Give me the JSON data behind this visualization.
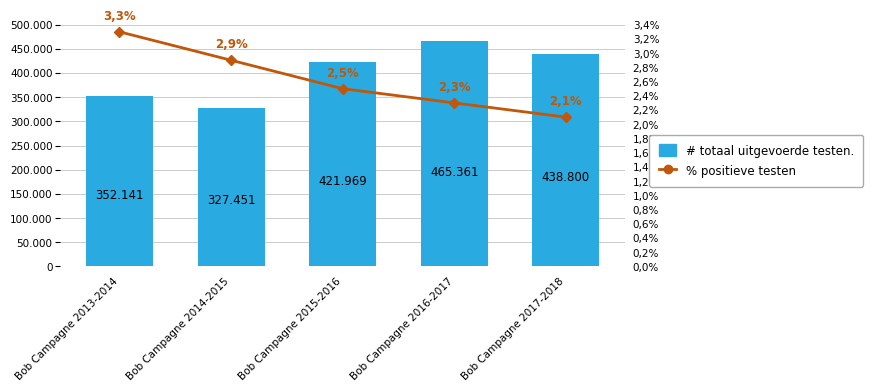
{
  "categories": [
    "Bob Campagne 2013-2014",
    "Bob Campagne 2014-2015",
    "Bob Campagne 2015-2016",
    "Bob Campagne 2016-2017",
    "Bob Campagne 2017-2018"
  ],
  "bar_values": [
    352141,
    327451,
    421969,
    465361,
    438800
  ],
  "bar_labels": [
    "352.141",
    "327.451",
    "421.969",
    "465.361",
    "438.800"
  ],
  "line_values": [
    3.3,
    2.9,
    2.5,
    2.3,
    2.1
  ],
  "line_labels": [
    "3,3%",
    "2,9%",
    "2,5%",
    "2,3%",
    "2,1%"
  ],
  "bar_color": "#29ABE2",
  "line_color": "#C0570A",
  "bar_ylim": [
    0,
    500000
  ],
  "bar_yticks": [
    0,
    50000,
    100000,
    150000,
    200000,
    250000,
    300000,
    350000,
    400000,
    450000,
    500000
  ],
  "line_ylim": [
    0.0,
    3.4
  ],
  "line_yticks": [
    0.0,
    0.2,
    0.4,
    0.6,
    0.8,
    1.0,
    1.2,
    1.4,
    1.6,
    1.8,
    2.0,
    2.2,
    2.4,
    2.6,
    2.8,
    3.0,
    3.2,
    3.4
  ],
  "legend_bar_label": "# totaal uitgevoerde testen.",
  "legend_line_label": "% positieve testen",
  "background_color": "#ffffff",
  "grid_color": "#cccccc",
  "bar_label_fontsize": 8.5,
  "tick_fontsize": 7.5,
  "legend_fontsize": 8.5,
  "line_annotation_fontsize": 8.5
}
